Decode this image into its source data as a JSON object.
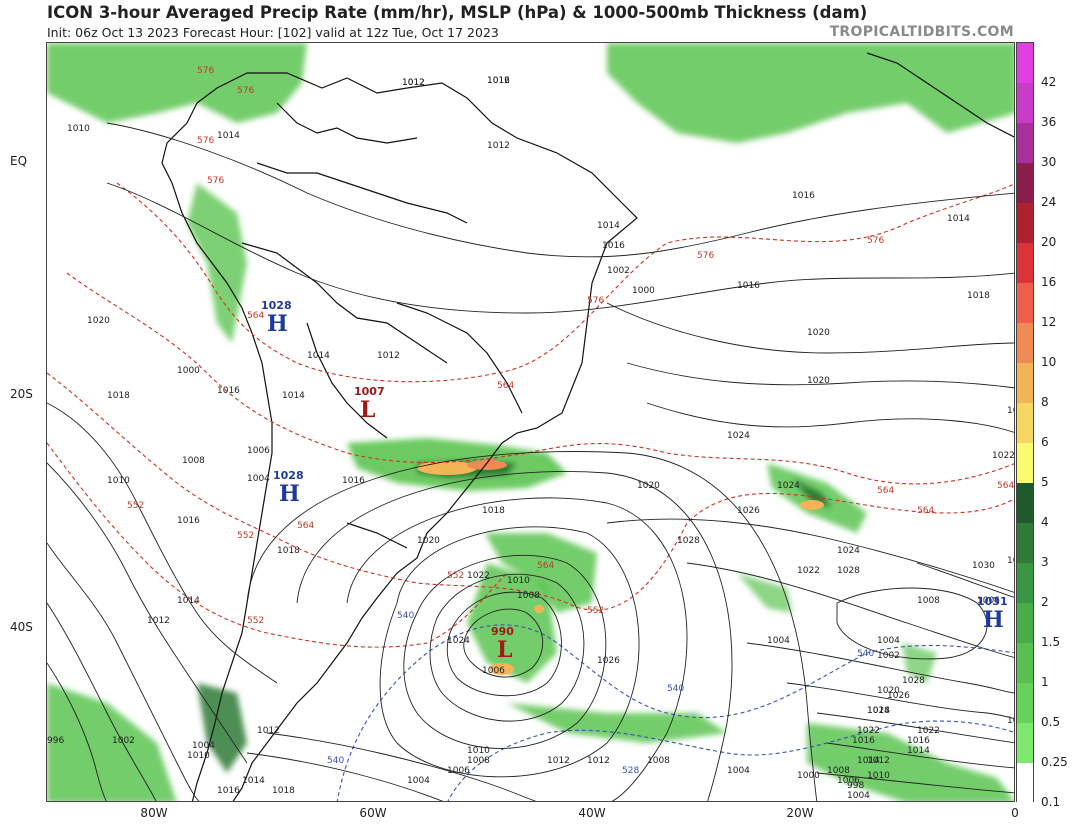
{
  "header": {
    "title": "ICON 3-hour Averaged Precip Rate (mm/hr), MSLP (hPa) & 1000-500mb Thickness (dam)",
    "subtitle": "Init: 06z Oct 13 2023   Forecast Hour: [102]   valid at 12z Tue, Oct 17 2023",
    "brand": "TROPICALTIDBITS.COM"
  },
  "axes": {
    "lat_labels": [
      "EQ",
      "20S",
      "40S"
    ],
    "lon_labels": [
      "80W",
      "60W",
      "40W",
      "20W",
      "0"
    ]
  },
  "colorbar": {
    "ticks": [
      "42",
      "36",
      "30",
      "24",
      "20",
      "16",
      "12",
      "10",
      "8",
      "6",
      "5",
      "4",
      "3",
      "2",
      "1.5",
      "1",
      "0.5",
      "0.25",
      "0.1"
    ],
    "colors": [
      "#e040e0",
      "#c93bc9",
      "#a8309c",
      "#8c1c4a",
      "#b0202e",
      "#d8343a",
      "#ef5e4a",
      "#f08a54",
      "#f2b456",
      "#f5d862",
      "#fbfb72",
      "#1f5a2a",
      "#2e7a36",
      "#3a9640",
      "#48ac48",
      "#58c050",
      "#66d25c",
      "#7ee86e",
      "#ffffff"
    ]
  },
  "pressure_systems": [
    {
      "type": "H",
      "value": "1028",
      "color": "#1f3a9f"
    },
    {
      "type": "H",
      "value": "1028",
      "color": "#1f3a9f"
    },
    {
      "type": "L",
      "value": "1007",
      "color": "#a01818"
    },
    {
      "type": "L",
      "value": "990",
      "color": "#a01818"
    },
    {
      "type": "H",
      "value": "1031",
      "color": "#1f3a9f"
    }
  ],
  "isobar_labels": [
    "1012",
    "1012",
    "1010",
    "1014",
    "1012",
    "1016",
    "1014",
    "1014",
    "1016",
    "1016",
    "1018",
    "1020",
    "1020",
    "1022",
    "1024",
    "1022",
    "1024",
    "1026",
    "1028",
    "1030",
    "1028",
    "1026",
    "1024",
    "1022",
    "1020",
    "1018",
    "1016",
    "1014",
    "1012",
    "1010",
    "1008",
    "1006",
    "1004",
    "1008",
    "1006",
    "1004",
    "1002",
    "1000",
    "1020",
    "1018",
    "1016",
    "1014",
    "1012",
    "1010",
    "1008",
    "1006",
    "1004",
    "1016",
    "1018",
    "1020",
    "1022",
    "1024",
    "1026",
    "1024",
    "1022",
    "1020",
    "1018",
    "1016",
    "1014",
    "996",
    "1002",
    "1004",
    "1012",
    "1010",
    "1014",
    "1016",
    "1018",
    "1004",
    "1006",
    "1008",
    "1010",
    "1012",
    "1012",
    "1008",
    "1004",
    "1000",
    "998",
    "1022",
    "1024",
    "1026",
    "1028",
    "1016",
    "1014",
    "1012",
    "1010",
    "1008",
    "1006",
    "1004",
    "1002",
    "1000",
    "1014",
    "1012",
    "1016"
  ],
  "thickness_labels": [
    "576",
    "576",
    "576",
    "576",
    "576",
    "576",
    "576",
    "564",
    "564",
    "564",
    "564",
    "564",
    "564",
    "564",
    "552",
    "552",
    "552",
    "552",
    "552",
    "540",
    "540",
    "540",
    "540",
    "528"
  ]
}
